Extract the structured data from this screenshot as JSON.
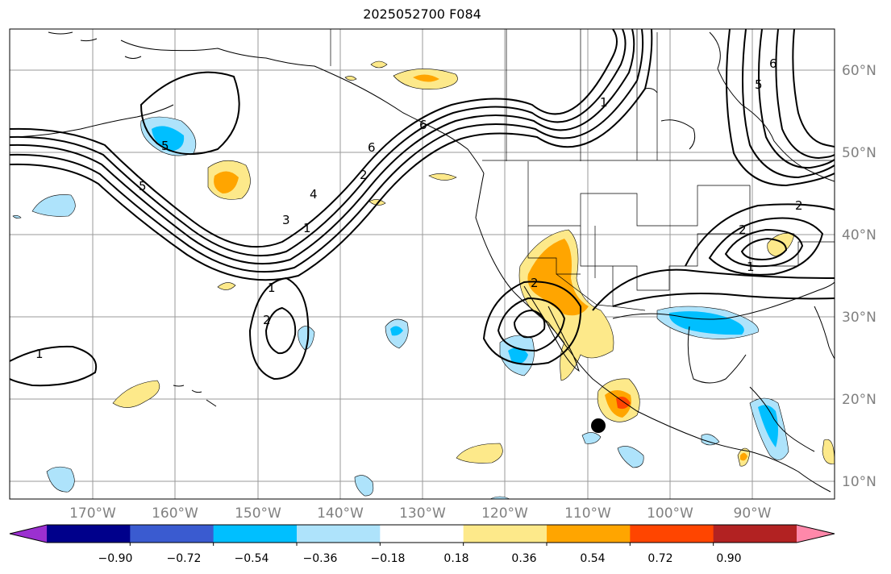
{
  "title": "2025052700 F084",
  "lat_labels": [
    "60°N",
    "50°N",
    "40°N",
    "30°N",
    "20°N",
    "10°N"
  ],
  "lon_labels": [
    "170°W",
    "160°W",
    "150°W",
    "140°W",
    "130°W",
    "120°W",
    "110°W",
    "100°W",
    "90°W"
  ],
  "colorbar": {
    "ticks": [
      "−0.90",
      "−0.72",
      "−0.54",
      "−0.36",
      "−0.18",
      "0.18",
      "0.36",
      "0.54",
      "0.72",
      "0.90"
    ],
    "colors": [
      "#9b30d0",
      "#00008b",
      "#3a5bd0",
      "#00bfff",
      "#aee3fb",
      "#ffffff",
      "#fde98a",
      "#ffa500",
      "#ff4500",
      "#b22222",
      "#ff88aa"
    ]
  },
  "contour_labels": [
    "1",
    "2",
    "3",
    "4",
    "5",
    "6",
    "1",
    "2",
    "1",
    "2",
    "1",
    "2",
    "5",
    "6",
    "1",
    "2",
    "5",
    "6"
  ],
  "marker": "black dot"
}
